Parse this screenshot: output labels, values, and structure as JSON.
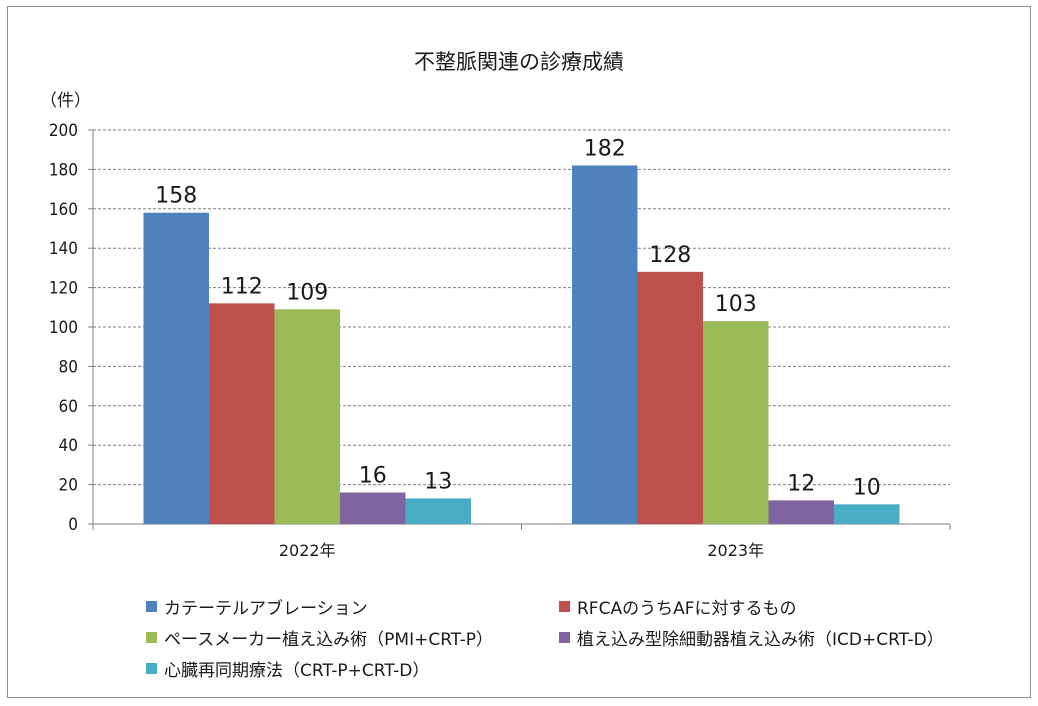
{
  "chart_data": {
    "type": "bar",
    "title": "不整脈関連の診療成績",
    "unit_label": "（件）",
    "categories": [
      "2022年",
      "2023年"
    ],
    "ylim": [
      0,
      200
    ],
    "yticks": [
      0,
      20,
      40,
      60,
      80,
      100,
      120,
      140,
      160,
      180,
      200
    ],
    "grid": true,
    "legend_position": "bottom",
    "series": [
      {
        "name": "カテーテルアブレーション",
        "color": "#4f81bd",
        "values": [
          158,
          182
        ]
      },
      {
        "name": "RFCAのうちAFに対するもの",
        "color": "#c0504d",
        "values": [
          112,
          128
        ]
      },
      {
        "name": "ペースメーカー植え込み術（PMI+CRT-P）",
        "color": "#9bbb59",
        "values": [
          109,
          103
        ]
      },
      {
        "name": "植え込み型除細動器植え込み術（ICD+CRT-D）",
        "color": "#8064a2",
        "values": [
          16,
          12
        ]
      },
      {
        "name": "心臓再同期療法（CRT-P+CRT-D）",
        "color": "#4bacc6",
        "values": [
          13,
          10
        ]
      }
    ]
  }
}
